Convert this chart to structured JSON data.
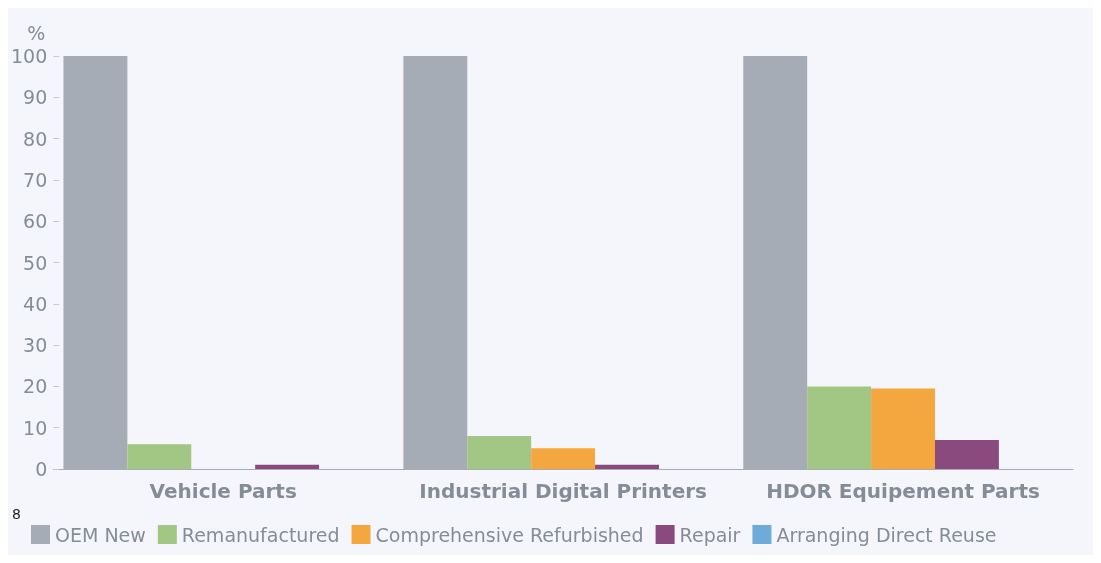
{
  "chart_data": {
    "type": "bar",
    "ylabel": "%",
    "categories": [
      "Vehicle Parts",
      "Industrial Digital Printers",
      "HDOR Equipement Parts"
    ],
    "series": [
      {
        "name": "OEM New",
        "color": "#a5acb5",
        "values": [
          100,
          100,
          100
        ]
      },
      {
        "name": "Remanufactured",
        "color": "#a2c683",
        "values": [
          6,
          8,
          20
        ]
      },
      {
        "name": "Comprehensive Refurbished",
        "color": "#f4a73e",
        "values": [
          0,
          5,
          19.5
        ]
      },
      {
        "name": "Repair",
        "color": "#8b4a7e",
        "values": [
          1,
          1,
          7
        ]
      },
      {
        "name": "Arranging Direct Reuse",
        "color": "#6fabd8",
        "values": [
          0,
          0,
          0
        ]
      }
    ],
    "ylim": [
      0,
      100
    ],
    "yticks": [
      0,
      10,
      20,
      30,
      40,
      50,
      60,
      70,
      80,
      90,
      100
    ],
    "grid": false,
    "legend": "bottom",
    "annotations": [
      "8"
    ]
  }
}
